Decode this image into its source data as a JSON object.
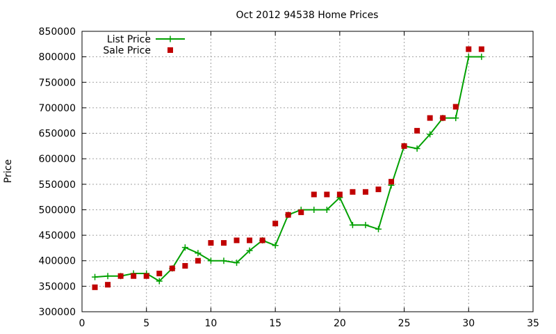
{
  "chart_data": {
    "type": "line",
    "title": "Oct 2012 94538 Home Prices",
    "xlabel": "",
    "ylabel": "Price",
    "xlim": [
      0,
      35
    ],
    "ylim": [
      300000,
      850000
    ],
    "xticks": [
      0,
      5,
      10,
      15,
      20,
      25,
      30,
      35
    ],
    "yticks": [
      300000,
      350000,
      400000,
      450000,
      500000,
      550000,
      600000,
      650000,
      700000,
      750000,
      800000,
      850000
    ],
    "grid": true,
    "legend_position": "top-left",
    "series": [
      {
        "name": "List Price",
        "type": "line",
        "marker": "plus",
        "color": "#00a000",
        "x": [
          1,
          2,
          3,
          4,
          5,
          6,
          7,
          8,
          9,
          10,
          11,
          12,
          13,
          14,
          15,
          16,
          17,
          18,
          19,
          20,
          21,
          22,
          23,
          24,
          25,
          26,
          27,
          28,
          29,
          30,
          31
        ],
        "values": [
          368000,
          370000,
          370000,
          375000,
          375000,
          360000,
          385000,
          426000,
          415000,
          400000,
          400000,
          396000,
          420000,
          440000,
          430000,
          490000,
          500000,
          500000,
          500000,
          524000,
          470000,
          470000,
          462000,
          548000,
          625000,
          620000,
          648000,
          680000,
          680000,
          800000,
          800000
        ]
      },
      {
        "name": "Sale Price",
        "type": "scatter",
        "marker": "square",
        "color": "#c00000",
        "x": [
          1,
          2,
          3,
          4,
          5,
          6,
          7,
          8,
          9,
          10,
          11,
          12,
          13,
          14,
          15,
          16,
          17,
          18,
          19,
          20,
          21,
          22,
          23,
          24,
          25,
          26,
          27,
          28,
          29,
          30,
          31
        ],
        "values": [
          348000,
          353000,
          370000,
          370000,
          370000,
          375000,
          385000,
          390000,
          400000,
          435000,
          435000,
          440000,
          440000,
          440000,
          473000,
          490000,
          495000,
          530000,
          530000,
          530000,
          535000,
          535000,
          540000,
          555000,
          625000,
          655000,
          680000,
          680000,
          702000,
          815000,
          815000
        ]
      }
    ]
  }
}
